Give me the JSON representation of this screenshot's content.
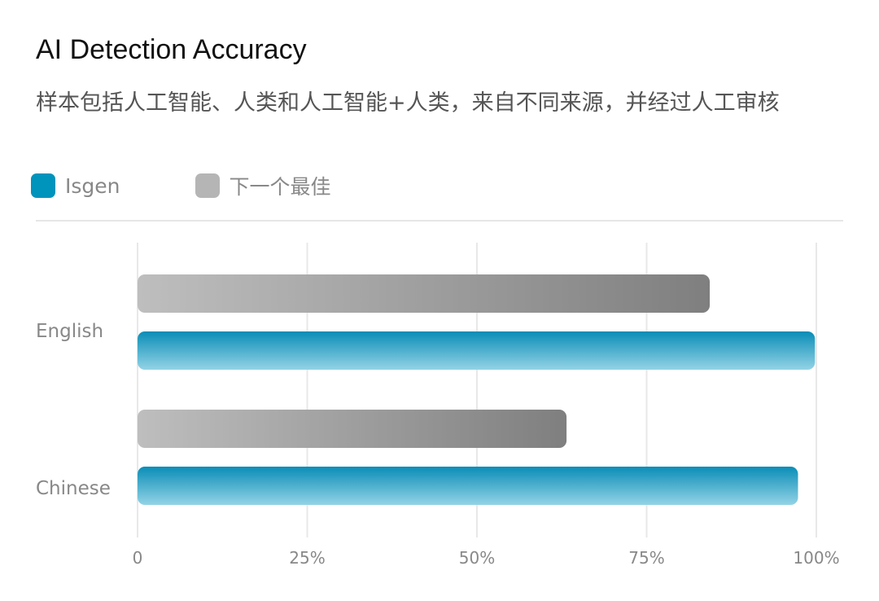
{
  "chart_data": {
    "type": "bar",
    "orientation": "horizontal",
    "title": "AI Detection Accuracy",
    "subtitle": "样本包括人工智能、人类和人工智能+人类，来自不同来源，并经过人工审核",
    "categories": [
      "English",
      "Chinese"
    ],
    "series": [
      {
        "name": "下一个最佳",
        "values": [
          84.3,
          63.2
        ],
        "color": "#b5b5b5"
      },
      {
        "name": "Isgen",
        "values": [
          99.8,
          97.3
        ],
        "color": "#0093bb"
      }
    ],
    "xlim": [
      0,
      100
    ],
    "xticks": [
      "0",
      "25%",
      "50%",
      "75%",
      "100%"
    ],
    "xtick_values": [
      0,
      25,
      50,
      75,
      100
    ],
    "grid": true,
    "legend": "top-left"
  }
}
